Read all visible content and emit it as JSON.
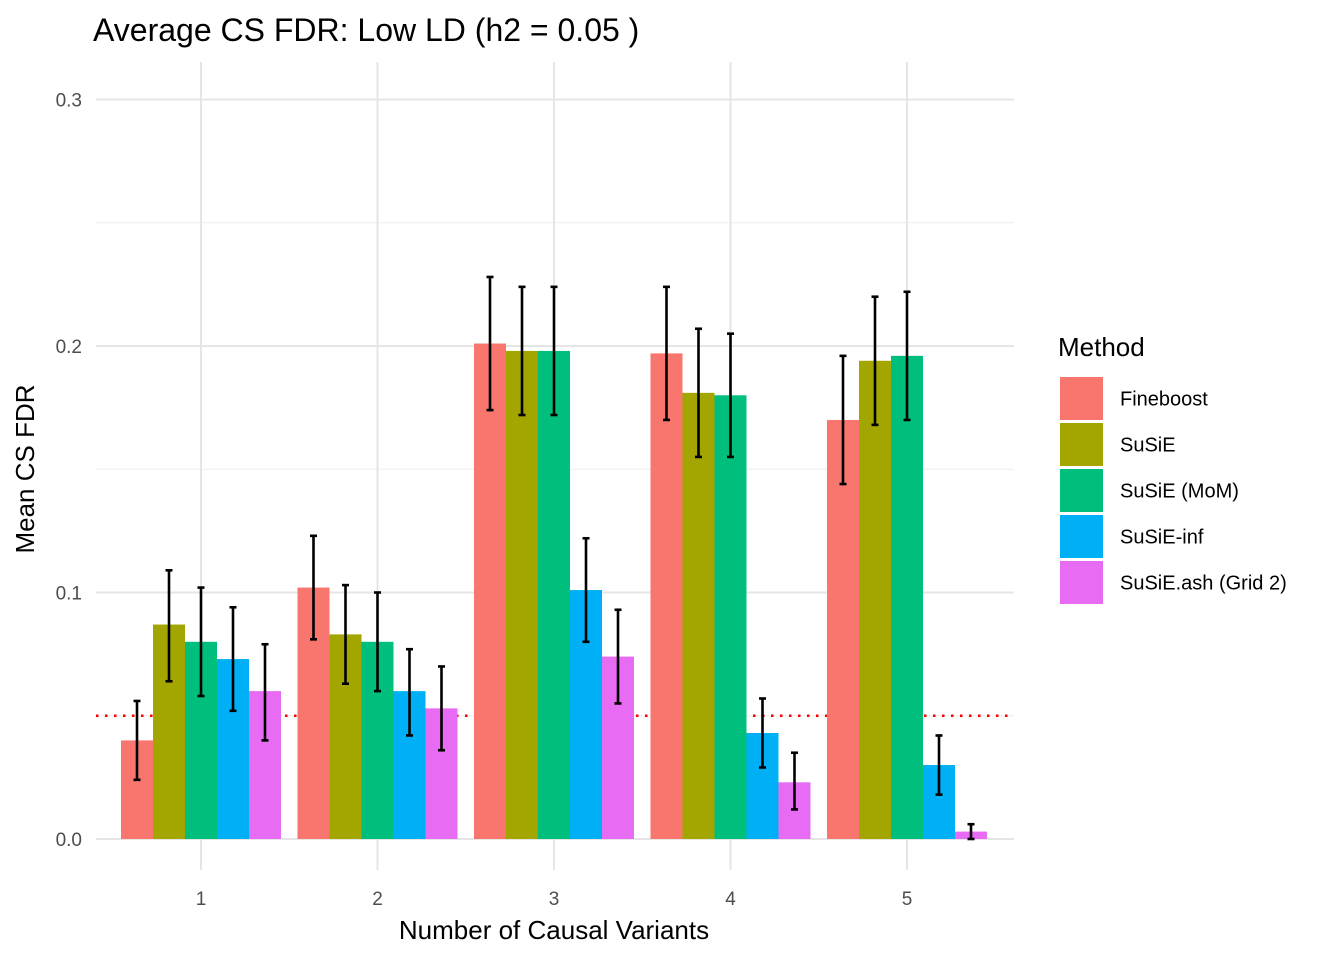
{
  "chart_data": {
    "type": "bar",
    "title": "Average CS FDR: Low LD (h2 = 0.05 )",
    "xlabel": "Number of Causal Variants",
    "ylabel": "Mean CS FDR",
    "categories": [
      "1",
      "2",
      "3",
      "4",
      "5"
    ],
    "ylim": [
      -0.012,
      0.315
    ],
    "yticks": [
      0.0,
      0.1,
      0.2,
      0.3
    ],
    "ytick_labels": [
      "0.0",
      "0.1",
      "0.2",
      "0.3"
    ],
    "grid": true,
    "reference_line": {
      "y": 0.05,
      "color": "#ff0000",
      "style": "dotted"
    },
    "legend": {
      "title": "Method",
      "position": "right"
    },
    "series": [
      {
        "name": "Fineboost",
        "color": "#F8766D",
        "values": [
          0.04,
          0.102,
          0.201,
          0.197,
          0.17
        ],
        "err_low": [
          0.024,
          0.081,
          0.174,
          0.17,
          0.144
        ],
        "err_high": [
          0.056,
          0.123,
          0.228,
          0.224,
          0.196
        ]
      },
      {
        "name": "SuSiE",
        "color": "#A3A500",
        "values": [
          0.087,
          0.083,
          0.198,
          0.181,
          0.194
        ],
        "err_low": [
          0.064,
          0.063,
          0.172,
          0.155,
          0.168
        ],
        "err_high": [
          0.109,
          0.103,
          0.224,
          0.207,
          0.22
        ]
      },
      {
        "name": "SuSiE (MoM)",
        "color": "#00BF7D",
        "values": [
          0.08,
          0.08,
          0.198,
          0.18,
          0.196
        ],
        "err_low": [
          0.058,
          0.06,
          0.172,
          0.155,
          0.17
        ],
        "err_high": [
          0.102,
          0.1,
          0.224,
          0.205,
          0.222
        ]
      },
      {
        "name": "SuSiE-inf",
        "color": "#00B0F6",
        "values": [
          0.073,
          0.06,
          0.101,
          0.043,
          0.03
        ],
        "err_low": [
          0.052,
          0.042,
          0.08,
          0.029,
          0.018
        ],
        "err_high": [
          0.094,
          0.077,
          0.122,
          0.057,
          0.042
        ]
      },
      {
        "name": "SuSiE.ash (Grid 2)",
        "color": "#E76BF3",
        "values": [
          0.06,
          0.053,
          0.074,
          0.023,
          0.003
        ],
        "err_low": [
          0.04,
          0.036,
          0.055,
          0.012,
          0.0
        ],
        "err_high": [
          0.079,
          0.07,
          0.093,
          0.035,
          0.006
        ]
      }
    ]
  }
}
